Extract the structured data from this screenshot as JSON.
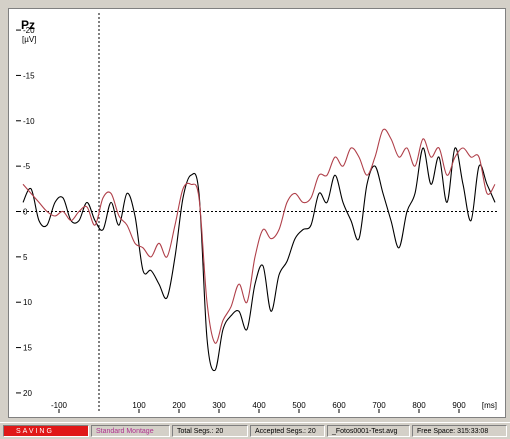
{
  "window": {
    "channel": "Pz",
    "unit": "[µV]"
  },
  "chart_data": {
    "type": "line",
    "xlabel": "[ms]",
    "ylabel": "[µV]",
    "xlim": [
      -200,
      1000
    ],
    "ylim": [
      21,
      -21
    ],
    "y_inverted": true,
    "x_ticks": [
      -100,
      100,
      200,
      300,
      400,
      500,
      600,
      700,
      800,
      900
    ],
    "y_ticks": [
      -20,
      -15,
      -10,
      -5,
      0,
      5,
      10,
      15,
      20
    ],
    "y_tick_labels": [
      "-20",
      "-15",
      "-10",
      "-5",
      "0",
      "5",
      "10",
      "15",
      "20"
    ],
    "x_tick_labels": [
      "-100",
      "100",
      "200",
      "300",
      "400",
      "500",
      "600",
      "700",
      "800",
      "900"
    ],
    "zero_reference_lines": true,
    "grid": false,
    "colors": {
      "series_1": "#000000",
      "series_2": "#b0404a",
      "zero_line": "#000000"
    },
    "series": [
      {
        "color": "#000000",
        "x": [
          -190,
          -170,
          -150,
          -130,
          -110,
          -90,
          -70,
          -50,
          -30,
          -10,
          10,
          30,
          50,
          70,
          90,
          110,
          130,
          150,
          170,
          190,
          210,
          230,
          250,
          270,
          290,
          310,
          330,
          350,
          370,
          390,
          410,
          430,
          450,
          470,
          490,
          510,
          530,
          550,
          570,
          590,
          610,
          630,
          650,
          670,
          690,
          710,
          730,
          750,
          770,
          790,
          810,
          830,
          850,
          870,
          890,
          910,
          930,
          950,
          970,
          990
        ],
        "values": [
          -1,
          -2.5,
          1,
          1.5,
          -1,
          -1.5,
          1,
          1,
          -1,
          1,
          2,
          -1,
          1.5,
          -2,
          0.5,
          6.5,
          6.5,
          8,
          9.5,
          5,
          -1.5,
          -4,
          -2,
          14,
          17.5,
          13,
          11.5,
          11,
          13,
          8,
          6,
          11,
          7,
          5.5,
          3,
          2,
          1.5,
          -2,
          -1,
          -4,
          -1,
          1,
          3,
          -3,
          -5,
          -2,
          1,
          4,
          0,
          -2,
          -7,
          -3,
          -6,
          -1,
          -7,
          -3,
          1,
          -5,
          -3,
          -1
        ]
      },
      {
        "color": "#b0404a",
        "x": [
          -190,
          -170,
          -150,
          -130,
          -110,
          -90,
          -70,
          -50,
          -30,
          -10,
          10,
          30,
          50,
          70,
          90,
          110,
          130,
          150,
          170,
          190,
          210,
          230,
          250,
          270,
          290,
          310,
          330,
          350,
          370,
          390,
          410,
          430,
          450,
          470,
          490,
          510,
          530,
          550,
          570,
          590,
          610,
          630,
          650,
          670,
          690,
          710,
          730,
          750,
          770,
          790,
          810,
          830,
          850,
          870,
          890,
          910,
          930,
          950,
          970,
          990
        ],
        "values": [
          -3,
          -2,
          -1,
          0,
          0.5,
          0,
          1,
          0,
          -0.5,
          1.5,
          -1.5,
          -2,
          0.5,
          1.5,
          3.5,
          4,
          5,
          3.5,
          5,
          1.5,
          -2.5,
          -3,
          -1.5,
          10,
          14.5,
          12,
          10.5,
          8,
          10,
          5,
          2,
          3,
          2,
          -1,
          -2,
          -1,
          -1.5,
          -4,
          -4,
          -6,
          -5,
          -7,
          -6,
          -4,
          -6,
          -9,
          -8,
          -6,
          -7,
          -5,
          -8,
          -6,
          -7,
          -4,
          -6,
          -7,
          -6,
          -6,
          -2,
          -3
        ]
      }
    ]
  },
  "status_bar": {
    "saving": "SAVING",
    "montage": "Standard Montage",
    "total_segs": "Total Segs.: 20",
    "accepted_segs": "Accepted Segs.: 20",
    "file": "_Fotos0001-Test.avg",
    "free_space": "Free Space: 315:33:08"
  }
}
